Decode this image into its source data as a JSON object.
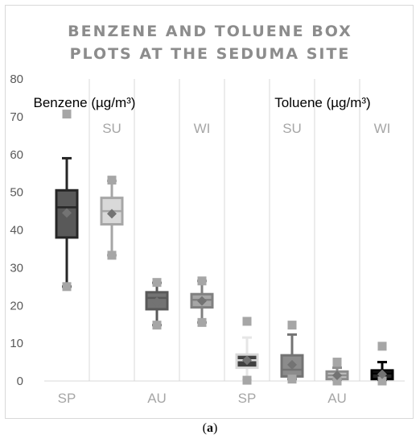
{
  "caption": {
    "open": "(",
    "letter": "a",
    "close": ")"
  },
  "chart_data": {
    "type": "box",
    "title_lines": [
      "BENZENE AND TOLUENE BOX",
      "PLOTS AT THE  SEDUMA SITE"
    ],
    "ylim": [
      0,
      80
    ],
    "yticks": [
      0,
      10,
      20,
      30,
      40,
      50,
      60,
      70,
      80
    ],
    "grid": "vertical-lines",
    "series_labels": [
      {
        "text": "Benzene (µg/m³)",
        "over": "benzene-group"
      },
      {
        "text": "Toluene (µg/m³)",
        "over": "toluene-group"
      }
    ],
    "boxes": [
      {
        "group": "Benzene",
        "season": "SP",
        "label_pos": "bottom",
        "whisker_low": 25,
        "q1": 38,
        "median": 46,
        "q3": 50.5,
        "whisker_high": 59,
        "mean": 44.5,
        "marker_low": 25,
        "marker_high": 70.7,
        "fill": "#595959",
        "stroke": "#262626",
        "whisker_color": "#262626"
      },
      {
        "group": "Benzene",
        "season": "SU",
        "label_pos": "top",
        "whisker_low": 33.3,
        "q1": 41.5,
        "median": 45,
        "q3": 48.5,
        "whisker_high": 53,
        "mean": 44.3,
        "marker_low": 33.3,
        "marker_high": 53.2,
        "fill": "#d9d9d9",
        "stroke": "#a6a6a6",
        "whisker_color": "#a6a6a6"
      },
      {
        "group": "Benzene",
        "season": "AU",
        "label_pos": "bottom",
        "whisker_low": 14.8,
        "q1": 19,
        "median": 22,
        "q3": 23.5,
        "whisker_high": 26,
        "mean": 21,
        "marker_low": 14.8,
        "marker_high": 26.1,
        "fill": "#737373",
        "stroke": "#595959",
        "whisker_color": "#595959"
      },
      {
        "group": "Benzene",
        "season": "WI",
        "label_pos": "top",
        "whisker_low": 15.5,
        "q1": 19.5,
        "median": 21.5,
        "q3": 23,
        "whisker_high": 26.5,
        "mean": 21.2,
        "marker_low": 15.5,
        "marker_high": 26.5,
        "fill": "#a6a6a6",
        "stroke": "#808080",
        "whisker_color": "#808080"
      },
      {
        "group": "Toluene",
        "season": "SP",
        "label_pos": "bottom",
        "whisker_low": 0.2,
        "q1": 3.5,
        "median": 5.5,
        "q3": 7,
        "whisker_high": 11.5,
        "mean": 5.5,
        "marker_low": 0.2,
        "marker_high": 15.8,
        "fill": "#404040",
        "stroke": "#d9d9d9",
        "whisker_color": "#e6e6e6"
      },
      {
        "group": "Toluene",
        "season": "SU",
        "label_pos": "top",
        "whisker_low": 0.5,
        "q1": 1.2,
        "median": 3,
        "q3": 6.8,
        "whisker_high": 12.3,
        "mean": 4.3,
        "marker_low": 0.5,
        "marker_high": 14.8,
        "fill": "#8c8c8c",
        "stroke": "#737373",
        "whisker_color": "#737373"
      },
      {
        "group": "Toluene",
        "season": "AU",
        "label_pos": "bottom",
        "whisker_low": 0.3,
        "q1": 0.5,
        "median": 1.5,
        "q3": 2.5,
        "whisker_high": 3.5,
        "mean": 1.5,
        "marker_low": 0,
        "marker_high": 5,
        "fill": "#bfbfbf",
        "stroke": "#8c8c8c",
        "whisker_color": "#8c8c8c"
      },
      {
        "group": "Toluene",
        "season": "WI",
        "label_pos": "top",
        "whisker_low": 0.3,
        "q1": 0.5,
        "median": 2,
        "q3": 2.8,
        "whisker_high": 5,
        "mean": 1.8,
        "marker_low": 0,
        "marker_high": 9.2,
        "fill": "#262626",
        "stroke": "#000000",
        "whisker_color": "#000000"
      }
    ],
    "outlier_marker_color": "#a6a6a6",
    "mean_marker_color": "#737373"
  }
}
